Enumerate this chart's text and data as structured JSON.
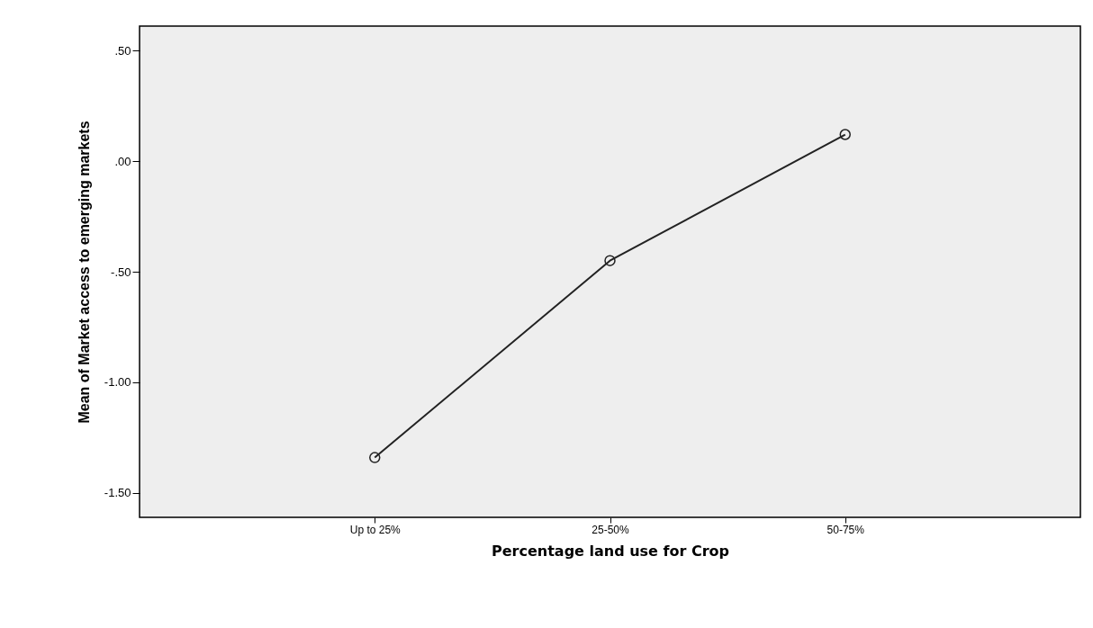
{
  "chart_data": {
    "type": "line",
    "xlabel": "Percentage land use for Crop",
    "ylabel": "Mean of Market access to emerging markets",
    "categories": [
      "Up to 25%",
      "25-50%",
      "50-75%"
    ],
    "series": [
      {
        "color": "#222222",
        "values": [
          -1.34,
          -0.45,
          0.12
        ]
      }
    ],
    "ylim": [
      -1.61,
      0.61
    ],
    "yticks": [
      {
        "value": -1.5,
        "label": "-1.50"
      },
      {
        "value": -1,
        "label": "-1.00"
      },
      {
        "value": -0.5,
        "label": "-.50"
      },
      {
        "value": 0,
        "label": ".00"
      },
      {
        "value": 0.5,
        "label": ".50"
      }
    ],
    "grid": false,
    "legend": false,
    "marker": "circle",
    "line_style": "solid"
  }
}
